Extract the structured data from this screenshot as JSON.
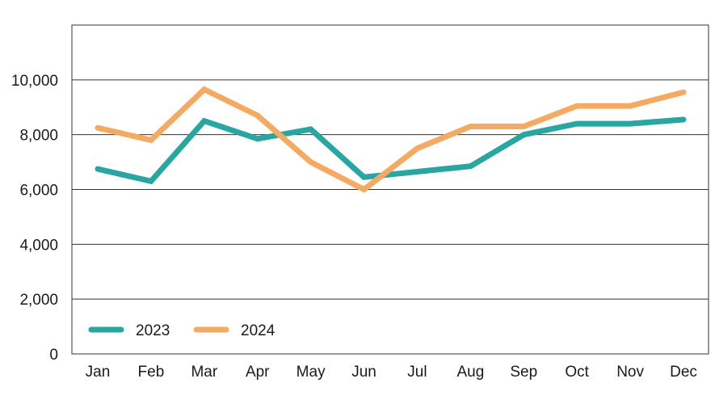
{
  "chart_data": {
    "type": "line",
    "title": "",
    "xlabel": "",
    "ylabel": "",
    "categories": [
      "Jan",
      "Feb",
      "Mar",
      "Apr",
      "May",
      "Jun",
      "Jul",
      "Aug",
      "Sep",
      "Oct",
      "Nov",
      "Dec"
    ],
    "ylim": [
      0,
      12000
    ],
    "yticks": [
      0,
      2000,
      4000,
      6000,
      8000,
      10000
    ],
    "ytick_labels": [
      "0",
      "2,000",
      "4,000",
      "6,000",
      "8,000",
      "10,000"
    ],
    "grid": "horizontal",
    "legend": "bottom-left",
    "series": [
      {
        "name": "2023",
        "color": "#2aa6a2",
        "values": [
          6750,
          6300,
          8500,
          7850,
          8200,
          6450,
          6650,
          6850,
          8000,
          8400,
          8400,
          8550
        ]
      },
      {
        "name": "2024",
        "color": "#f4aa63",
        "values": [
          8250,
          7800,
          9650,
          8700,
          7000,
          6000,
          7500,
          8300,
          8300,
          9050,
          9050,
          9550
        ]
      }
    ]
  }
}
